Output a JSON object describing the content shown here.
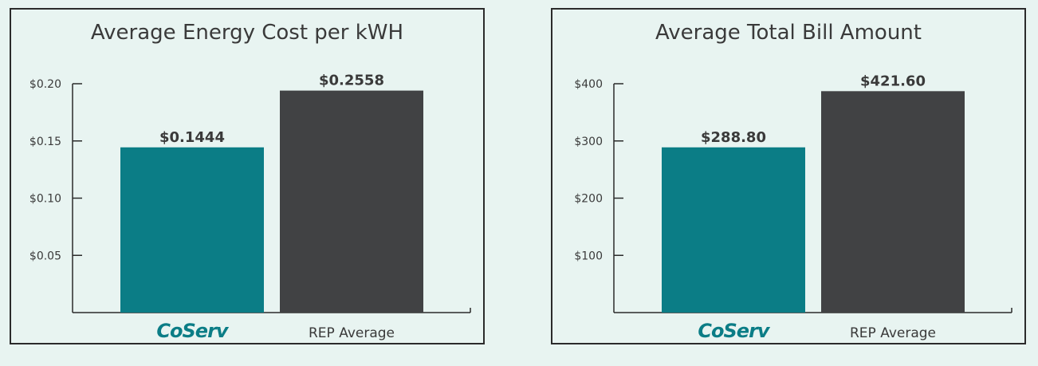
{
  "colors": {
    "background": "#e8f4f1",
    "border": "#2b2b2b",
    "teal": "#0b7d86",
    "dark": "#414244",
    "text": "#3a3a3a"
  },
  "chart_data": [
    {
      "type": "bar",
      "title": "Average Energy Cost per kWH",
      "categories": [
        "CoServ",
        "REP Average"
      ],
      "brand_category": "CoServ",
      "values": [
        0.1444,
        0.2558
      ],
      "value_labels": [
        "$0.1444",
        "$0.2558"
      ],
      "bar_colors": [
        "#0b7d86",
        "#414244"
      ],
      "yticks": [
        0.05,
        0.1,
        0.15,
        0.2
      ],
      "ytick_labels": [
        "$0.05",
        "$0.10",
        "$0.15",
        "$0.20"
      ],
      "ylim": [
        0,
        0.2
      ],
      "axis_max_value": 0.2,
      "bar_cap_value": 0.194,
      "grid": false,
      "legend": "none"
    },
    {
      "type": "bar",
      "title": "Average Total Bill Amount",
      "categories": [
        "CoServ",
        "REP Average"
      ],
      "brand_category": "CoServ",
      "values": [
        288.8,
        421.6
      ],
      "value_labels": [
        "$288.80",
        "$421.60"
      ],
      "bar_colors": [
        "#0b7d86",
        "#414244"
      ],
      "yticks": [
        100,
        200,
        300,
        400
      ],
      "ytick_labels": [
        "$100",
        "$200",
        "$300",
        "$400"
      ],
      "ylim": [
        0,
        400
      ],
      "axis_max_value": 400,
      "bar_cap_value": 387,
      "grid": false,
      "legend": "none"
    }
  ]
}
